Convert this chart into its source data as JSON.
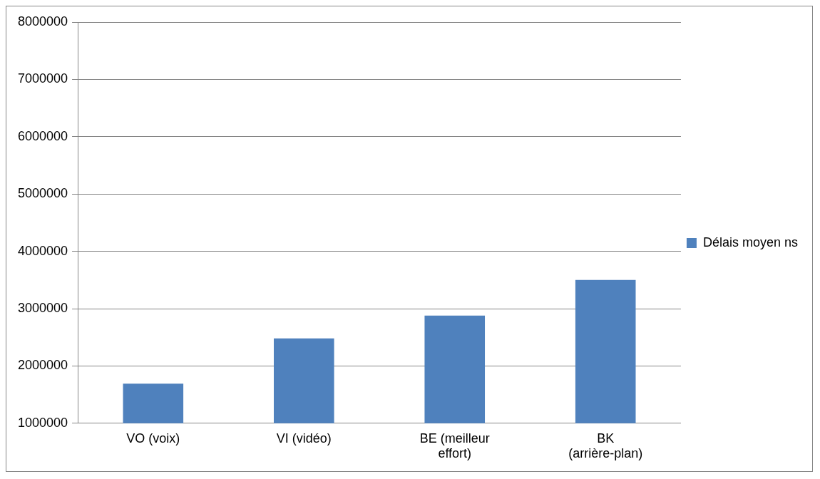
{
  "chart_data": {
    "type": "bar",
    "categories": [
      "VO (voix)",
      "VI (vidéo)",
      "BE (meilleur effort)",
      "BK (arrière-plan)"
    ],
    "series": [
      {
        "name": "Délais moyen ns",
        "color": "#4f81bd",
        "values": [
          1690000,
          2480000,
          2880000,
          3500000
        ]
      }
    ],
    "ylim": [
      1000000,
      8000000
    ],
    "yticks": [
      1000000,
      2000000,
      3000000,
      4000000,
      5000000,
      6000000,
      7000000,
      8000000
    ],
    "grid": "y",
    "legend": "right"
  }
}
